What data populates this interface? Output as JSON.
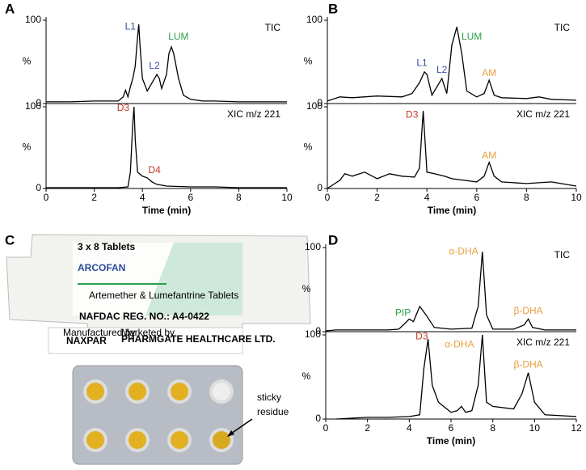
{
  "chart_data": [
    {
      "type": "line",
      "panel": "A",
      "xlabel": "Time (min)",
      "xlim": [
        0,
        10
      ],
      "xticks": [
        0,
        2,
        4,
        6,
        8,
        10
      ],
      "subplots": [
        {
          "label": "TIC",
          "ylabel": "%",
          "ylim": [
            0,
            100
          ],
          "yticks": [
            0,
            100
          ],
          "color": "#000000",
          "x": [
            0,
            1,
            2,
            3,
            3.2,
            3.3,
            3.4,
            3.5,
            3.6,
            3.7,
            3.8,
            3.85,
            3.9,
            4.0,
            4.2,
            4.4,
            4.6,
            4.7,
            4.8,
            5.0,
            5.1,
            5.2,
            5.3,
            5.5,
            5.7,
            6.0,
            6.5,
            7,
            8,
            9,
            10
          ],
          "values": [
            2,
            2,
            3,
            3,
            8,
            16,
            8,
            20,
            30,
            45,
            80,
            95,
            70,
            30,
            15,
            25,
            35,
            30,
            18,
            35,
            60,
            68,
            60,
            30,
            10,
            5,
            3,
            3,
            2,
            2,
            2
          ],
          "annotations": [
            {
              "text": "L1",
              "x": 3.5,
              "y": 92,
              "color": "#3a4fa0"
            },
            {
              "text": "L2",
              "x": 4.5,
              "y": 45,
              "color": "#3a4fa0"
            },
            {
              "text": "LUM",
              "x": 5.5,
              "y": 80,
              "color": "#2aa04a"
            }
          ]
        },
        {
          "label": "XIC m/z 221",
          "ylabel": "%",
          "ylim": [
            0,
            100
          ],
          "yticks": [
            0,
            100
          ],
          "color": "#000000",
          "x": [
            0,
            1,
            2,
            3,
            3.4,
            3.5,
            3.6,
            3.65,
            3.7,
            3.8,
            4.0,
            4.2,
            4.4,
            4.6,
            5,
            6,
            7,
            8,
            9,
            10
          ],
          "values": [
            1,
            1,
            1,
            1,
            2,
            20,
            80,
            100,
            60,
            20,
            15,
            13,
            8,
            5,
            3,
            2,
            2,
            1,
            1,
            1
          ],
          "annotations": [
            {
              "text": "D3",
              "x": 3.2,
              "y": 98,
              "color": "#c0392b"
            },
            {
              "text": "D4",
              "x": 4.5,
              "y": 22,
              "color": "#c0392b"
            }
          ]
        }
      ]
    },
    {
      "type": "line",
      "panel": "B",
      "xlabel": "Time (min)",
      "xlim": [
        0,
        10
      ],
      "xticks": [
        0,
        2,
        4,
        6,
        8,
        10
      ],
      "subplots": [
        {
          "label": "TIC",
          "ylabel": "%",
          "ylim": [
            0,
            100
          ],
          "yticks": [
            0,
            100
          ],
          "color": "#000000",
          "x": [
            0,
            0.5,
            1,
            2,
            3,
            3.4,
            3.7,
            3.9,
            4.0,
            4.2,
            4.4,
            4.6,
            4.8,
            5.0,
            5.2,
            5.4,
            5.6,
            6.0,
            6.3,
            6.5,
            6.7,
            7,
            8,
            8.5,
            9,
            10
          ],
          "values": [
            3,
            8,
            7,
            9,
            8,
            12,
            25,
            38,
            35,
            10,
            20,
            30,
            12,
            70,
            92,
            60,
            15,
            8,
            12,
            28,
            10,
            7,
            6,
            8,
            5,
            4
          ],
          "annotations": [
            {
              "text": "L1",
              "x": 3.8,
              "y": 48,
              "color": "#3a4fa0"
            },
            {
              "text": "L2",
              "x": 4.6,
              "y": 40,
              "color": "#3a4fa0"
            },
            {
              "text": "LUM",
              "x": 5.8,
              "y": 80,
              "color": "#2aa04a"
            },
            {
              "text": "AM",
              "x": 6.5,
              "y": 36,
              "color": "#e8a040"
            }
          ]
        },
        {
          "label": "XIC m/z 221",
          "ylabel": "%",
          "ylim": [
            0,
            100
          ],
          "yticks": [
            0,
            100
          ],
          "color": "#000000",
          "x": [
            0,
            0.5,
            0.7,
            1,
            1.5,
            2,
            2.5,
            3,
            3.5,
            3.7,
            3.85,
            4.0,
            4.3,
            4.7,
            5,
            5.5,
            6,
            6.3,
            6.5,
            6.7,
            7,
            8,
            9,
            10
          ],
          "values": [
            0,
            10,
            18,
            15,
            20,
            12,
            18,
            15,
            14,
            25,
            95,
            20,
            18,
            15,
            12,
            10,
            8,
            15,
            32,
            15,
            8,
            6,
            8,
            3
          ],
          "annotations": [
            {
              "text": "D3",
              "x": 3.4,
              "y": 90,
              "color": "#c0392b"
            },
            {
              "text": "AM",
              "x": 6.5,
              "y": 40,
              "color": "#e8a040"
            }
          ]
        }
      ]
    },
    {
      "type": "line",
      "panel": "D",
      "xlabel": "Time (min)",
      "xlim": [
        0,
        12
      ],
      "xticks": [
        0,
        2,
        4,
        6,
        8,
        10,
        12
      ],
      "subplots": [
        {
          "label": "TIC",
          "ylabel": "%",
          "ylim": [
            0,
            100
          ],
          "yticks": [
            0,
            100
          ],
          "color": "#000000",
          "x": [
            0,
            0.5,
            2,
            3,
            3.5,
            3.8,
            4.0,
            4.2,
            4.5,
            4.8,
            5.2,
            6,
            7,
            7.3,
            7.5,
            7.7,
            8,
            9,
            9.5,
            9.7,
            9.9,
            10.5,
            12
          ],
          "values": [
            1,
            2,
            2,
            2,
            3,
            10,
            15,
            12,
            30,
            20,
            5,
            3,
            4,
            30,
            95,
            20,
            3,
            3,
            8,
            15,
            5,
            2,
            2
          ],
          "annotations": [
            {
              "text": "PIP",
              "x": 3.7,
              "y": 22,
              "color": "#2aa04a"
            },
            {
              "text": "α-DHA",
              "x": 6.6,
              "y": 95,
              "color": "#e8a040"
            },
            {
              "text": "β-DHA",
              "x": 9.7,
              "y": 24,
              "color": "#e8a040"
            }
          ]
        },
        {
          "label": "XIC m/z 221",
          "ylabel": "%",
          "ylim": [
            0,
            100
          ],
          "yticks": [
            0,
            100
          ],
          "color": "#000000",
          "x": [
            0.5,
            2,
            3,
            4,
            4.5,
            4.7,
            4.9,
            5.1,
            5.4,
            6,
            6.3,
            6.5,
            6.7,
            7,
            7.3,
            7.5,
            7.7,
            8,
            9,
            9.4,
            9.7,
            10,
            10.5,
            12
          ],
          "values": [
            0,
            2,
            2,
            3,
            5,
            60,
            95,
            40,
            20,
            8,
            10,
            15,
            8,
            10,
            40,
            100,
            20,
            15,
            12,
            30,
            55,
            20,
            5,
            3
          ],
          "annotations": [
            {
              "text": "D3",
              "x": 4.6,
              "y": 98,
              "color": "#c0392b"
            },
            {
              "text": "α-DHA",
              "x": 6.4,
              "y": 88,
              "color": "#e8a040"
            },
            {
              "text": "β-DHA",
              "x": 9.7,
              "y": 64,
              "color": "#e8a040"
            }
          ]
        }
      ]
    }
  ],
  "photo": {
    "panel": "C",
    "pack_count": "3 x 8 Tablets",
    "brand": "ARCOFAN",
    "description": "Artemether & Lumefantrine Tablets",
    "nafdac": "NAFDAC REG. NO.: A4-0422",
    "manufactured_by": "Manufactured by",
    "manufacturer": "NAXPAR",
    "marketed_by": "Marketed by",
    "marketer": "PHARMGATE HEALTHCARE LTD.",
    "annotation": [
      "sticky",
      "residue"
    ]
  }
}
